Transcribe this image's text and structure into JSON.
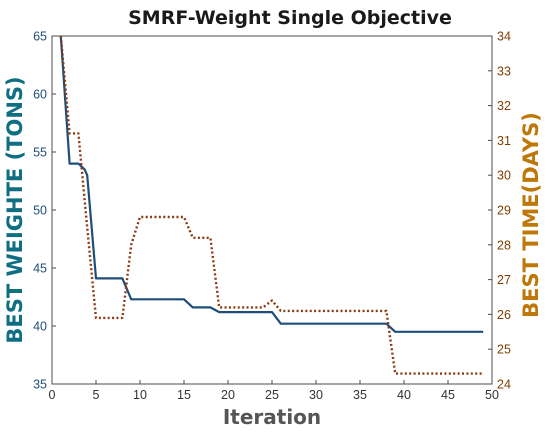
{
  "chart_data": {
    "type": "line",
    "title": "SMRF-Weight Single Objective",
    "xlabel": "Iteration",
    "ylabel_left": "BEST WEIGHTE (TONS)",
    "ylabel_right": "BEST TIME(DAYS)",
    "xlim": [
      0,
      50
    ],
    "ylim_left": [
      35,
      65
    ],
    "ylim_right": [
      24,
      34
    ],
    "x_ticks": [
      0,
      5,
      10,
      15,
      20,
      25,
      30,
      35,
      40,
      45,
      50
    ],
    "y_ticks_left": [
      35,
      40,
      45,
      50,
      55,
      60,
      65
    ],
    "y_ticks_right": [
      24,
      25,
      26,
      27,
      28,
      29,
      30,
      31,
      32,
      33,
      34
    ],
    "grid": false,
    "series": [
      {
        "axis": "left",
        "style": "solid",
        "color": "#1f4e79",
        "x": [
          1,
          2,
          3,
          3.7,
          4,
          5,
          8,
          9,
          15,
          16,
          18,
          19,
          25,
          26,
          38,
          39,
          49
        ],
        "y": [
          65,
          54,
          54,
          53.5,
          53,
          44.1,
          44.1,
          42.3,
          42.3,
          41.6,
          41.6,
          41.2,
          41.2,
          40.2,
          40.2,
          39.5,
          39.5
        ]
      },
      {
        "axis": "right",
        "style": "dotted",
        "color": "#8b3a10",
        "x": [
          1,
          2,
          3,
          4,
          5,
          8,
          9,
          10,
          15,
          16,
          18,
          19,
          24,
          25,
          26,
          38,
          39,
          49
        ],
        "y": [
          34,
          31.2,
          31.2,
          28.5,
          25.9,
          25.9,
          28,
          28.8,
          28.8,
          28.2,
          28.2,
          26.2,
          26.2,
          26.4,
          26.1,
          26.1,
          24.3,
          24.3
        ]
      }
    ]
  },
  "colors": {
    "left_axis": "#1f4e79",
    "right_axis": "#7f3f00",
    "left_label": "#0f6e82",
    "right_label": "#c0770a"
  }
}
